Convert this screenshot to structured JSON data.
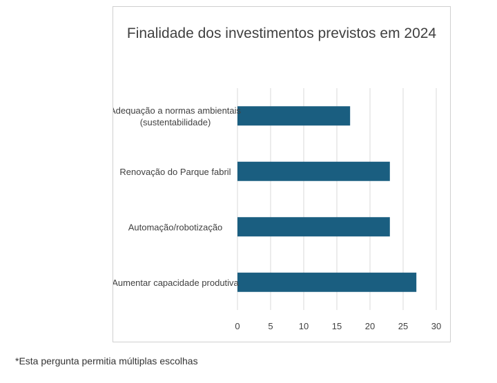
{
  "chart_data": {
    "type": "bar",
    "orientation": "horizontal",
    "title": "Finalidade dos investimentos previstos em 2024",
    "categories": [
      [
        "Adequação a normas ambientais",
        "(sustentabilidade)"
      ],
      [
        "Renovação do Parque fabril"
      ],
      [
        "Automação/robotização"
      ],
      [
        "Aumentar capacidade produtiva"
      ]
    ],
    "values": [
      17,
      23,
      23,
      27
    ],
    "xlim": [
      0,
      30
    ],
    "xticks": [
      "0",
      "5",
      "10",
      "15",
      "20",
      "25",
      "30"
    ],
    "xlabel": "",
    "ylabel": "",
    "grid": "vertical",
    "bar_color": "#1a5e80",
    "legend": "none"
  },
  "footnote": "*Esta pergunta permitia múltiplas escolhas"
}
